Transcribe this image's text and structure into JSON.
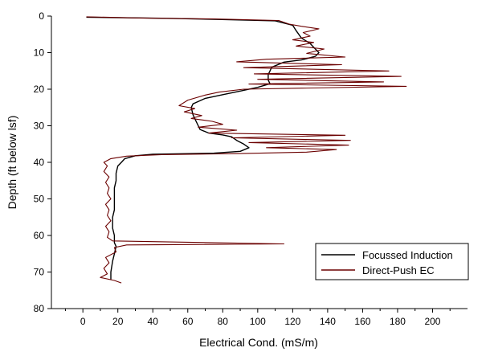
{
  "chart_data": {
    "type": "line",
    "title": "",
    "xlabel": "Electrical Cond. (mS/m)",
    "ylabel": "Depth (ft below lsf)",
    "xlim": [
      -18,
      220
    ],
    "ylim": [
      80,
      0
    ],
    "y_inverted": true,
    "x_ticks": [
      0,
      20,
      40,
      60,
      80,
      100,
      120,
      140,
      160,
      180,
      200
    ],
    "y_ticks": [
      0,
      10,
      20,
      30,
      40,
      50,
      60,
      70,
      80
    ],
    "grid": false,
    "legend_position": "bottom-right",
    "series": [
      {
        "name": "Focussed Induction",
        "color": "#000000",
        "points": [
          [
            2,
            0.3
          ],
          [
            45,
            0.6
          ],
          [
            75,
            0.9
          ],
          [
            110,
            1.3
          ],
          [
            120,
            2.5
          ],
          [
            122,
            4
          ],
          [
            125,
            6
          ],
          [
            130,
            7.5
          ],
          [
            133,
            9
          ],
          [
            135,
            10
          ],
          [
            133,
            11
          ],
          [
            125,
            12
          ],
          [
            115,
            12.6
          ],
          [
            108,
            14
          ],
          [
            107,
            15
          ],
          [
            106,
            16
          ],
          [
            106,
            17.5
          ],
          [
            107,
            18.5
          ],
          [
            100,
            19.5
          ],
          [
            90,
            20.5
          ],
          [
            80,
            21.5
          ],
          [
            70,
            22.5
          ],
          [
            63,
            24
          ],
          [
            62,
            25
          ],
          [
            63,
            27
          ],
          [
            65,
            29
          ],
          [
            66,
            30
          ],
          [
            67,
            31
          ],
          [
            72,
            32
          ],
          [
            80,
            32.5
          ],
          [
            85,
            33
          ],
          [
            88,
            34
          ],
          [
            92,
            35
          ],
          [
            95,
            36
          ],
          [
            90,
            37
          ],
          [
            75,
            37.5
          ],
          [
            40,
            37.8
          ],
          [
            30,
            38.2
          ],
          [
            24,
            39
          ],
          [
            22,
            40
          ],
          [
            20,
            41
          ],
          [
            19,
            43
          ],
          [
            19,
            45
          ],
          [
            18,
            47
          ],
          [
            18,
            50
          ],
          [
            18,
            53
          ],
          [
            17,
            55
          ],
          [
            17,
            58
          ],
          [
            18,
            60
          ],
          [
            18,
            62
          ],
          [
            19,
            63
          ],
          [
            18,
            65
          ],
          [
            17,
            67
          ],
          [
            16,
            70
          ],
          [
            16,
            72
          ]
        ]
      },
      {
        "name": "Direct-Push EC",
        "color": "#6b0000",
        "points": [
          [
            2,
            0.2
          ],
          [
            30,
            0.5
          ],
          [
            75,
            0.8
          ],
          [
            112,
            1.2
          ],
          [
            118,
            2.2
          ],
          [
            125,
            2.8
          ],
          [
            135,
            3.5
          ],
          [
            126,
            4.5
          ],
          [
            130,
            5.5
          ],
          [
            120,
            6.5
          ],
          [
            132,
            7.2
          ],
          [
            122,
            8.2
          ],
          [
            138,
            9
          ],
          [
            128,
            10.2
          ],
          [
            150,
            11.2
          ],
          [
            105,
            11.8
          ],
          [
            88,
            12.5
          ],
          [
            148,
            13.3
          ],
          [
            92,
            14.1
          ],
          [
            175,
            15
          ],
          [
            98,
            15.8
          ],
          [
            182,
            16.5
          ],
          [
            100,
            17.3
          ],
          [
            172,
            18
          ],
          [
            95,
            18.6
          ],
          [
            185,
            19.2
          ],
          [
            92,
            20
          ],
          [
            78,
            20.8
          ],
          [
            70,
            21.6
          ],
          [
            60,
            23
          ],
          [
            55,
            24.5
          ],
          [
            64,
            25.3
          ],
          [
            58,
            26.2
          ],
          [
            68,
            27.2
          ],
          [
            62,
            28
          ],
          [
            74,
            28.8
          ],
          [
            80,
            29.6
          ],
          [
            66,
            30.4
          ],
          [
            88,
            31.2
          ],
          [
            72,
            32
          ],
          [
            150,
            32.6
          ],
          [
            85,
            33.3
          ],
          [
            153,
            34
          ],
          [
            95,
            34.6
          ],
          [
            152,
            35.3
          ],
          [
            105,
            36
          ],
          [
            145,
            36.5
          ],
          [
            128,
            37.2
          ],
          [
            90,
            37.6
          ],
          [
            45,
            37.9
          ],
          [
            25,
            38.3
          ],
          [
            16,
            39
          ],
          [
            12,
            40
          ],
          [
            14,
            41
          ],
          [
            12,
            42.5
          ],
          [
            15,
            44
          ],
          [
            13,
            45.5
          ],
          [
            15,
            47
          ],
          [
            14,
            48.5
          ],
          [
            16,
            50
          ],
          [
            13,
            51.5
          ],
          [
            15,
            53
          ],
          [
            14,
            54.5
          ],
          [
            16,
            56
          ],
          [
            13,
            57.5
          ],
          [
            15,
            59
          ],
          [
            14,
            60.5
          ],
          [
            17,
            61.5
          ],
          [
            115,
            62.3
          ],
          [
            25,
            62.6
          ],
          [
            18,
            63.3
          ],
          [
            19,
            64.5
          ],
          [
            13,
            66
          ],
          [
            15,
            67.5
          ],
          [
            12,
            69
          ],
          [
            14,
            70.5
          ],
          [
            10,
            71.5
          ],
          [
            18,
            72.3
          ],
          [
            22,
            73
          ]
        ]
      }
    ]
  }
}
